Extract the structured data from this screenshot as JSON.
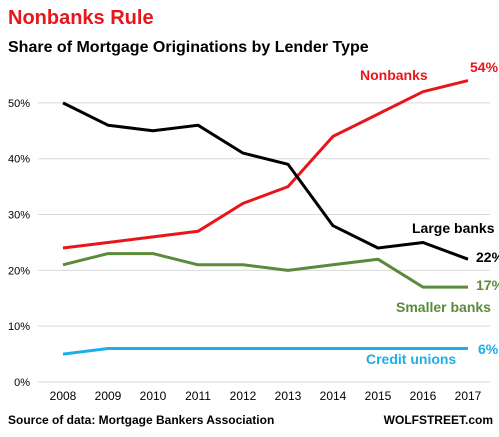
{
  "chart_data": {
    "type": "line",
    "title": "Nonbanks  Rule",
    "subtitle": "Share of Mortgage Originations by Lender Type",
    "x": [
      "2008",
      "2009",
      "2010",
      "2011",
      "2012",
      "2013",
      "2014",
      "2015",
      "2016",
      "2017"
    ],
    "ylim": [
      0,
      55
    ],
    "yticks": [
      0,
      10,
      20,
      30,
      40,
      50
    ],
    "ytick_labels": [
      "0%",
      "10%",
      "20%",
      "30%",
      "40%",
      "50%"
    ],
    "grid": true,
    "series": [
      {
        "name": "Nonbanks",
        "color": "#e8161b",
        "end_label": "54%",
        "values": [
          24,
          25,
          26,
          27,
          32,
          35,
          44,
          48,
          52,
          54
        ]
      },
      {
        "name": "Large banks",
        "color": "#000000",
        "end_label": "22%",
        "values": [
          50,
          46,
          45,
          46,
          41,
          39,
          28,
          24,
          25,
          22
        ]
      },
      {
        "name": "Smaller banks",
        "color": "#5a8a3a",
        "end_label": "17%",
        "values": [
          21,
          23,
          23,
          21,
          21,
          20,
          21,
          22,
          17,
          17
        ]
      },
      {
        "name": "Credit unions",
        "color": "#1eaee8",
        "end_label": "6%",
        "values": [
          5,
          6,
          6,
          6,
          6,
          6,
          6,
          6,
          6,
          6
        ]
      }
    ],
    "source": "Source of data: Mortgage Bankers Association",
    "brand": "WOLFSTREET.com",
    "title_color": "#e8161b"
  }
}
